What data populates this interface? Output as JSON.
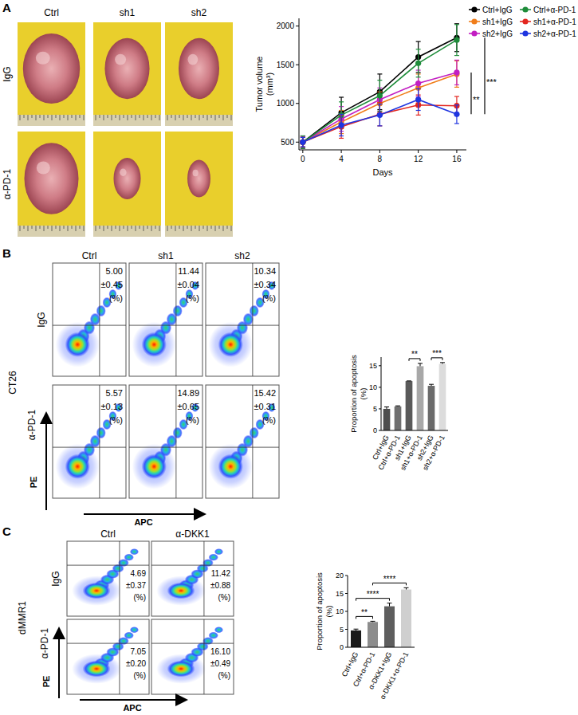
{
  "chart_data": [
    {
      "type": "line",
      "x_label": "Days",
      "y_label": [
        "Tumor volume",
        "(mm³)"
      ],
      "x": [
        0,
        4,
        8,
        12,
        16
      ],
      "xlim": [
        -0.4,
        17
      ],
      "xticks": [
        0,
        4,
        8,
        12,
        16
      ],
      "ylim": [
        400,
        2100
      ],
      "yticks": [
        500,
        1000,
        1500,
        2000
      ],
      "legend": "top-right",
      "marker": "circle",
      "series": [
        {
          "name": "Ctrl+IgG",
          "color": "#000000",
          "values": [
            500,
            880,
            1150,
            1600,
            1850
          ],
          "errors": [
            80,
            200,
            230,
            200,
            180
          ]
        },
        {
          "name": "sh1+IgG",
          "color": "#f07d1a",
          "values": [
            500,
            760,
            1000,
            1200,
            1380
          ],
          "errors": [
            70,
            150,
            150,
            180,
            170
          ]
        },
        {
          "name": "sh2+IgG",
          "color": "#c21fc2",
          "values": [
            500,
            800,
            1050,
            1260,
            1400
          ],
          "errors": [
            70,
            160,
            150,
            170,
            160
          ]
        },
        {
          "name": "Ctrl+α-PD-1",
          "color": "#1e8c3a",
          "values": [
            500,
            850,
            1100,
            1520,
            1820
          ],
          "errors": [
            80,
            170,
            200,
            180,
            200
          ]
        },
        {
          "name": "sh1+α-PD-1",
          "color": "#e3261f",
          "values": [
            500,
            700,
            860,
            980,
            970
          ],
          "errors": [
            60,
            150,
            150,
            130,
            120
          ]
        },
        {
          "name": "sh2+α-PD-1",
          "color": "#1f35e0",
          "values": [
            500,
            720,
            850,
            1050,
            860
          ],
          "errors": [
            60,
            140,
            140,
            140,
            120
          ]
        }
      ],
      "annotations": [
        {
          "text": "**",
          "y_range": [
            860,
            1400
          ]
        },
        {
          "text": "***",
          "y_range": [
            860,
            1850
          ]
        }
      ]
    },
    {
      "type": "bar",
      "y_label": [
        "Proportion of apoptosis",
        "(%)"
      ],
      "categories": [
        "Ctrl+IgG",
        "Ctrl+α-PD-1",
        "sh1+IgG",
        "sh1+α-PD-1",
        "sh2+IgG",
        "sh2+α-PD-1"
      ],
      "values": [
        5.0,
        5.57,
        11.44,
        14.89,
        10.34,
        15.42
      ],
      "errors": [
        0.45,
        0.13,
        0.04,
        0.65,
        0.34,
        0.31
      ],
      "colors": [
        "#4d4d4d",
        "#6f6f6f",
        "#5a5a5a",
        "#a8a8a8",
        "#6a6a6a",
        "#dcdcdc"
      ],
      "ylim": [
        0,
        17
      ],
      "yticks": [
        0,
        5,
        10,
        15
      ],
      "annotations": [
        {
          "text": "**",
          "from": 2,
          "to": 3
        },
        {
          "text": "***",
          "from": 4,
          "to": 5
        }
      ]
    },
    {
      "type": "bar",
      "y_label": [
        "Proportion of apoptosis",
        "(%)"
      ],
      "categories": [
        "Ctrl+IgG",
        "Ctrl+α-PD-1",
        "α-DKK1+IgG",
        "α-DKK1+α-PD-1"
      ],
      "values": [
        4.69,
        7.05,
        11.42,
        16.1
      ],
      "errors": [
        0.37,
        0.2,
        0.88,
        0.49
      ],
      "colors": [
        "#1a1a1a",
        "#8c8c8c",
        "#5e5e5e",
        "#cfcfcf"
      ],
      "ylim": [
        0,
        20
      ],
      "yticks": [
        0,
        5,
        10,
        15,
        20
      ],
      "annotations": [
        {
          "text": "**",
          "from": 0,
          "to": 1
        },
        {
          "text": "****",
          "from": 0,
          "to": 2
        },
        {
          "text": "****",
          "from": 1,
          "to": 3
        }
      ]
    }
  ],
  "figure": {
    "panel_letters": [
      "A",
      "B",
      "C"
    ],
    "tumor_photos": {
      "columns": [
        "Ctrl",
        "sh1",
        "sh2"
      ],
      "rows": [
        "IgG",
        "α-PD-1"
      ]
    },
    "flow_b": {
      "cell_line": "CT26",
      "columns": [
        "Ctrl",
        "sh1",
        "sh2"
      ],
      "rows": [
        "IgG",
        "α-PD-1"
      ],
      "x_axis": "APC",
      "y_axis": "PE",
      "unit_label": "(%)",
      "cells": [
        [
          {
            "label": "5.00",
            "error_label": "±0.45"
          },
          {
            "label": "11.44",
            "error_label": "±0.04"
          },
          {
            "label": "10.34",
            "error_label": "±0.34"
          }
        ],
        [
          {
            "label": "5.57",
            "error_label": "±0.13"
          },
          {
            "label": "14.89",
            "error_label": "±0.65"
          },
          {
            "label": "15.42",
            "error_label": "±0.31"
          }
        ]
      ]
    },
    "flow_c": {
      "cell_line": "dMMR1",
      "columns": [
        "Ctrl",
        "α-DKK1"
      ],
      "rows": [
        "IgG",
        "α-PD-1"
      ],
      "x_axis": "APC",
      "y_axis": "PE",
      "unit_label": "(%)",
      "cells": [
        [
          {
            "label": "4.69",
            "error_label": "±0.37"
          },
          {
            "label": "11.42",
            "error_label": "±0.88"
          }
        ],
        [
          {
            "label": "7.05",
            "error_label": "±0.20"
          },
          {
            "label": "16.10",
            "error_label": "±0.49"
          }
        ]
      ]
    }
  }
}
